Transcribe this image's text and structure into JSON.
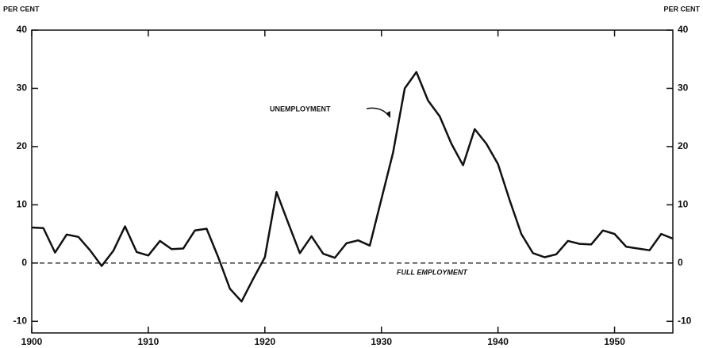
{
  "chart_data": {
    "type": "line",
    "y_label_left": "PER CENT",
    "y_label_right": "PER CENT",
    "annotations": [
      "UNEMPLOYMENT",
      "FULL EMPLOYMENT"
    ],
    "x": [
      1900,
      1901,
      1902,
      1903,
      1904,
      1905,
      1906,
      1907,
      1908,
      1909,
      1910,
      1911,
      1912,
      1913,
      1914,
      1915,
      1916,
      1917,
      1918,
      1919,
      1920,
      1921,
      1922,
      1923,
      1924,
      1925,
      1926,
      1927,
      1928,
      1929,
      1930,
      1931,
      1932,
      1933,
      1934,
      1935,
      1936,
      1937,
      1938,
      1939,
      1940,
      1941,
      1942,
      1943,
      1944,
      1945,
      1946,
      1947,
      1948,
      1949,
      1950,
      1951,
      1952,
      1953,
      1954,
      1955
    ],
    "series": [
      {
        "color": "#111111",
        "values": [
          6.1,
          6.0,
          1.8,
          4.9,
          4.5,
          2.2,
          -0.5,
          2.1,
          6.3,
          1.9,
          1.3,
          3.8,
          2.4,
          2.5,
          5.6,
          5.9,
          1.0,
          -4.4,
          -6.6,
          -2.7,
          1.0,
          12.2,
          6.9,
          1.7,
          4.6,
          1.6,
          0.9,
          3.4,
          3.9,
          3.0,
          11.0,
          19.0,
          30.0,
          32.8,
          27.9,
          25.2,
          20.5,
          16.8,
          23.0,
          20.5,
          17.0,
          10.8,
          5.0,
          1.7,
          1.0,
          1.5,
          3.8,
          3.3,
          3.2,
          5.6,
          5.0,
          2.8,
          2.5,
          2.2,
          5.0,
          4.2
        ]
      }
    ],
    "xlim": [
      1900,
      1955
    ],
    "xticks": [
      1900,
      1910,
      1920,
      1930,
      1940,
      1950
    ],
    "ylim": [
      -12,
      40
    ],
    "yticks": [
      -10,
      0,
      10,
      20,
      30,
      40
    ],
    "y2lim": [
      -12,
      40
    ],
    "y2ticks": [
      -10,
      0,
      10,
      20,
      30,
      40
    ]
  }
}
